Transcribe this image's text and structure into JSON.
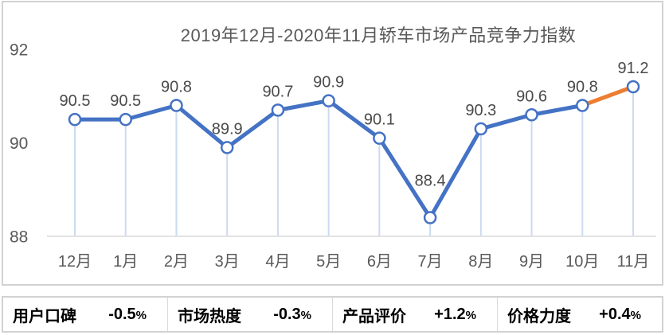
{
  "chart_data": {
    "type": "line",
    "title": "2019年12月-2020年11月轿车市场产品竞争力指数",
    "categories": [
      "12月",
      "1月",
      "2月",
      "3月",
      "4月",
      "5月",
      "6月",
      "7月",
      "8月",
      "9月",
      "10月",
      "11月"
    ],
    "values": [
      90.5,
      90.5,
      90.8,
      89.9,
      90.7,
      90.9,
      90.1,
      88.4,
      90.3,
      90.6,
      90.8,
      91.2
    ],
    "yticks": [
      88,
      90,
      92
    ],
    "ylim": [
      88,
      92
    ],
    "grid": false,
    "legend": null,
    "data_labels": true,
    "highlight_last_segment": true,
    "colors": {
      "series": "#4472c4",
      "last_segment": "#ed7d31",
      "marker_fill": "#ffffff",
      "drop_line": "#ccdaf1",
      "axis_line": "#d9d9d9",
      "tick_label": "#595959",
      "value_label": "#4a4a4a",
      "title": "#595959"
    }
  },
  "stats": [
    {
      "label": "用户口碑",
      "value": "-0.5",
      "unit": "%"
    },
    {
      "label": "市场热度",
      "value": "-0.3",
      "unit": "%"
    },
    {
      "label": "产品评价",
      "value": "+1.2",
      "unit": "%"
    },
    {
      "label": "价格力度",
      "value": "+0.4",
      "unit": "%"
    }
  ]
}
